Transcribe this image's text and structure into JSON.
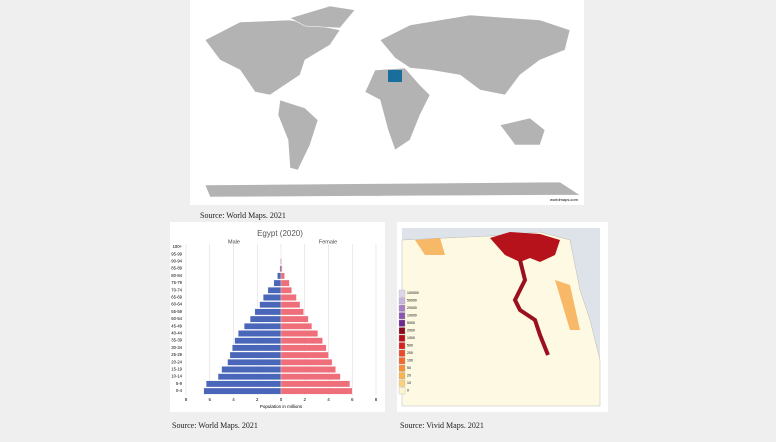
{
  "captions": {
    "world": "Source: World Maps. 2021",
    "pyramid": "Source: World Maps. 2021",
    "egypt": "Source: Vivid Maps. 2021"
  },
  "world_map": {
    "watermark": "worldmaps.com"
  },
  "egypt_map": {
    "legend": [
      "100000",
      "50000",
      "20000",
      "10000",
      "5000",
      "2000",
      "1000",
      "500",
      "200",
      "100",
      "50",
      "20",
      "10",
      "0"
    ],
    "legend_colors": [
      "#ddd6ea",
      "#c7b3dc",
      "#a77fc4",
      "#8a55ae",
      "#6e2a8f",
      "#8b0a1e",
      "#b5121b",
      "#d7231f",
      "#ea4a26",
      "#f06b2d",
      "#f59039",
      "#f8b44d",
      "#fbd27a",
      "#fdf6d5"
    ]
  },
  "chart_data": {
    "type": "pyramid",
    "title": "Egypt (2020)",
    "x_label": "Population in millions",
    "categories": [
      "0-4",
      "5-9",
      "10-14",
      "15-19",
      "20-24",
      "25-29",
      "30-34",
      "35-39",
      "40-44",
      "45-49",
      "50-54",
      "55-59",
      "60-64",
      "65-69",
      "70-74",
      "75-79",
      "80-84",
      "85-89",
      "90-94",
      "95-99",
      "100+"
    ],
    "series": [
      {
        "name": "Male",
        "color": "#4a66b8",
        "values": [
          6.5,
          6.3,
          5.3,
          5.0,
          4.5,
          4.3,
          4.1,
          3.9,
          3.6,
          3.1,
          2.6,
          2.2,
          1.8,
          1.5,
          1.1,
          0.6,
          0.3,
          0.1,
          0.05,
          0.01,
          0
        ]
      },
      {
        "name": "Female",
        "color": "#ee6f7a",
        "values": [
          6.0,
          5.8,
          5.0,
          4.6,
          4.3,
          4.0,
          3.8,
          3.5,
          3.1,
          2.6,
          2.3,
          1.9,
          1.6,
          1.3,
          0.9,
          0.7,
          0.3,
          0.1,
          0.05,
          0.01,
          0
        ]
      }
    ],
    "xlim": [
      -8,
      8
    ],
    "xticks": [
      {
        "value": -8,
        "label": "8"
      },
      {
        "value": -6,
        "label": "6"
      },
      {
        "value": -4,
        "label": "4"
      },
      {
        "value": -2,
        "label": "2"
      },
      0,
      2,
      4,
      6,
      8
    ],
    "grid": true
  }
}
